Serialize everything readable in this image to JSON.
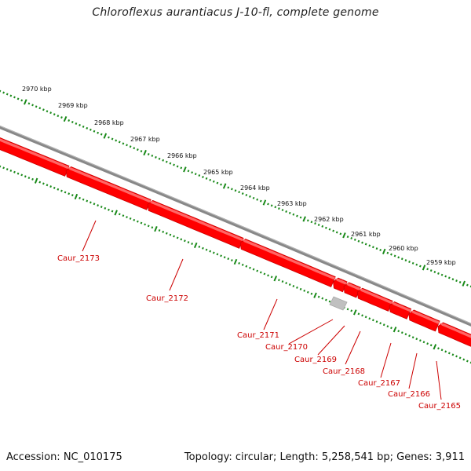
{
  "title": "Chloroflexus aurantiacus J-10-fl, complete genome",
  "footer": {
    "accession_label": "Accession: NC_010175",
    "summary": "Topology: circular; Length: 5,258,541 bp; Genes: 3,911"
  },
  "colors": {
    "gene_fill": "#ff0000",
    "gene_dark": "#cc0000",
    "gene_light": "#ff6666",
    "backbone": "#888888",
    "ticks": "#1a8a1a",
    "pseudo": "#c0c0c0",
    "label": "#cc0000"
  },
  "scale_labels": [
    "2970 kbp",
    "2969 kbp",
    "2968 kbp",
    "2967 kbp",
    "2966 kbp",
    "2965 kbp",
    "2964 kbp",
    "2963 kbp",
    "2962 kbp",
    "2961 kbp",
    "2960 kbp",
    "2959 kbp"
  ],
  "genes": [
    "Caur_2173",
    "Caur_2172",
    "Caur_2171",
    "Caur_2170",
    "Caur_2169",
    "Caur_2168",
    "Caur_2167",
    "Caur_2166",
    "Caur_2165"
  ]
}
